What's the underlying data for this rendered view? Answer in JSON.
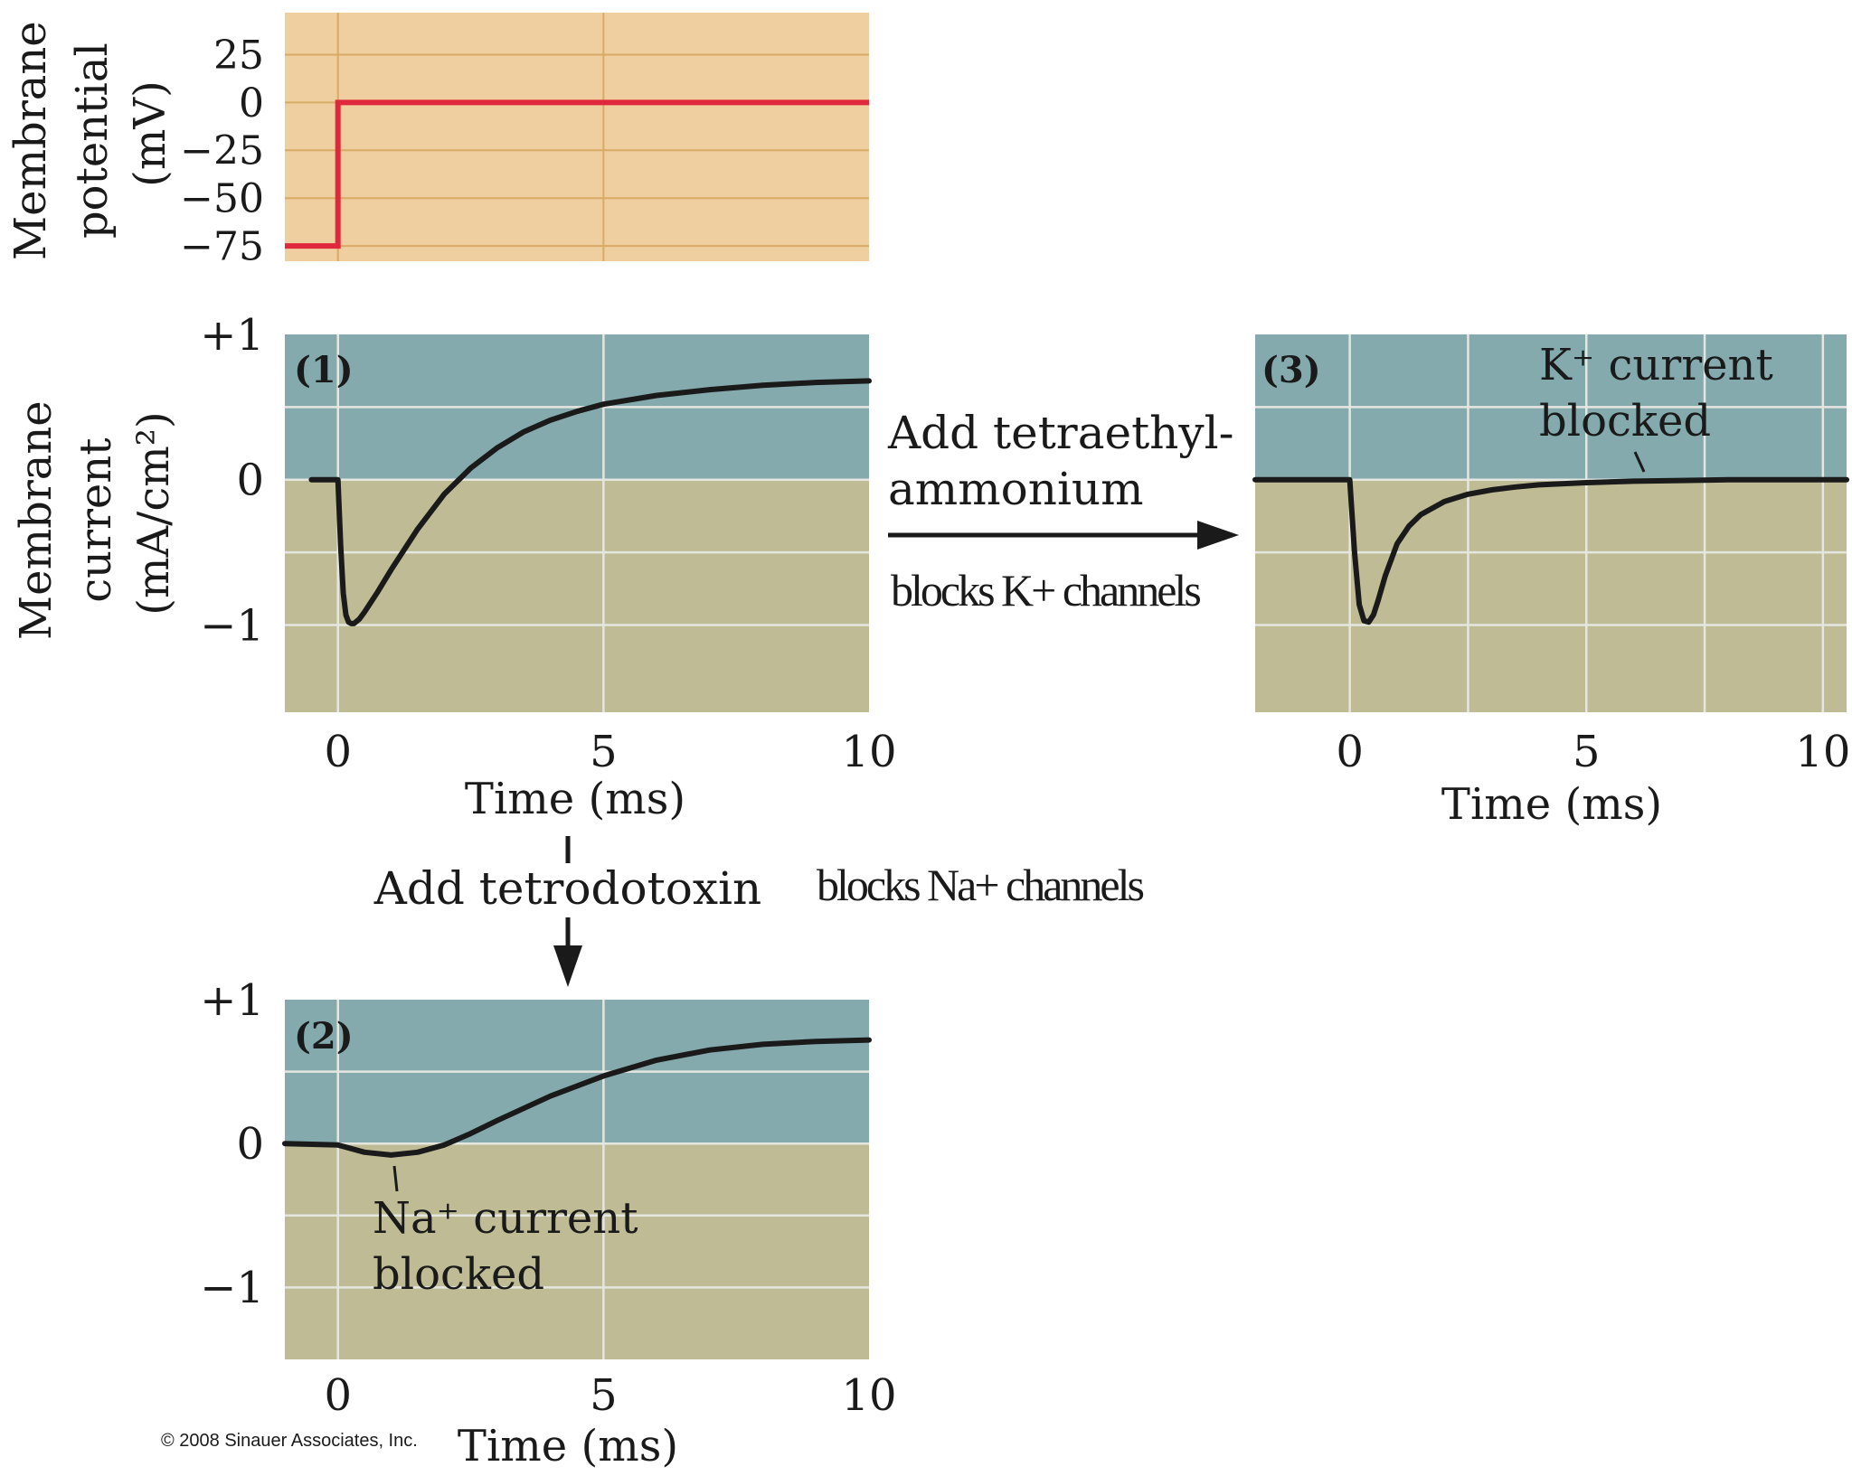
{
  "chart_data": [
    {
      "id": "voltage",
      "type": "line",
      "ylabel": [
        "Membrane",
        "potential",
        "(mV)"
      ],
      "yticks": [
        25,
        0,
        -25,
        -50,
        -75
      ],
      "ytick_labels": [
        "25",
        "0",
        "−25",
        "−50",
        "−75"
      ],
      "xlim": [
        -1,
        10
      ],
      "ylim": [
        -83,
        47
      ],
      "grid": true,
      "colors": {
        "background": "#efcfa0",
        "grid": "#d8aa64",
        "line": "#e0283c"
      },
      "series": [
        {
          "x": [
            -1,
            0,
            0,
            10
          ],
          "y": [
            -75,
            -75,
            0,
            0
          ]
        }
      ]
    },
    {
      "id": "panel-1",
      "type": "line",
      "panel_label": "(1)",
      "ylabel": [
        "Membrane",
        "current",
        "(mA/cm²)"
      ],
      "yticks": [
        1,
        0,
        -1
      ],
      "ytick_labels": [
        "+1",
        "0",
        "−1"
      ],
      "xticks": [
        0,
        5,
        10
      ],
      "xlabel": "Time (ms)",
      "xlim": [
        -1,
        10
      ],
      "ylim": [
        -1.6,
        1
      ],
      "grid": true,
      "colors": {
        "positive": "#84aaae",
        "negative": "#bfbc95",
        "grid": "#e6e6e1",
        "line": "#1a1a1a"
      },
      "series": [
        {
          "x": [
            -0.5,
            0,
            0.05,
            0.1,
            0.15,
            0.2,
            0.25,
            0.3,
            0.4,
            0.5,
            0.75,
            1,
            1.5,
            2,
            2.5,
            3,
            3.5,
            4,
            4.5,
            5,
            6,
            7,
            8,
            9,
            10
          ],
          "y": [
            0,
            0,
            -0.45,
            -0.78,
            -0.93,
            -0.98,
            -0.99,
            -0.99,
            -0.96,
            -0.91,
            -0.77,
            -0.62,
            -0.34,
            -0.1,
            0.08,
            0.22,
            0.33,
            0.41,
            0.47,
            0.52,
            0.58,
            0.62,
            0.65,
            0.67,
            0.68
          ]
        }
      ]
    },
    {
      "id": "panel-3",
      "type": "line",
      "panel_label": "(3)",
      "xticks": [
        0,
        5,
        10
      ],
      "xlabel": "Time (ms)",
      "xlim": [
        -2,
        10.5
      ],
      "ylim": [
        -1.6,
        1
      ],
      "grid": true,
      "colors": {
        "positive": "#84aaae",
        "negative": "#bfbc95",
        "grid": "#e6e6e1",
        "line": "#1a1a1a"
      },
      "series": [
        {
          "x": [
            -2,
            0,
            0.1,
            0.2,
            0.3,
            0.4,
            0.5,
            0.6,
            0.75,
            1,
            1.25,
            1.5,
            2,
            2.5,
            3,
            3.5,
            4,
            5,
            6,
            7,
            8,
            9,
            10,
            10.5
          ],
          "y": [
            0,
            0,
            -0.5,
            -0.86,
            -0.97,
            -0.98,
            -0.93,
            -0.83,
            -0.66,
            -0.44,
            -0.32,
            -0.24,
            -0.15,
            -0.1,
            -0.07,
            -0.05,
            -0.035,
            -0.02,
            -0.01,
            -0.005,
            0,
            0,
            0,
            0
          ]
        }
      ]
    },
    {
      "id": "panel-2",
      "type": "line",
      "panel_label": "(2)",
      "yticks": [
        1,
        0,
        -1
      ],
      "ytick_labels": [
        "+1",
        "0",
        "−1"
      ],
      "xticks": [
        0,
        5,
        10
      ],
      "xlabel": "Time (ms)",
      "xlim": [
        -1,
        10
      ],
      "ylim": [
        -1.5,
        1
      ],
      "grid": true,
      "colors": {
        "positive": "#84aaae",
        "negative": "#bfbc95",
        "grid": "#e6e6e1",
        "line": "#1a1a1a"
      },
      "series": [
        {
          "x": [
            -1,
            0,
            0.5,
            1,
            1.5,
            2,
            2.5,
            3,
            4,
            5,
            6,
            7,
            8,
            9,
            10
          ],
          "y": [
            0,
            -0.01,
            -0.06,
            -0.08,
            -0.06,
            -0.01,
            0.07,
            0.16,
            0.33,
            0.47,
            0.58,
            0.65,
            0.69,
            0.71,
            0.72
          ]
        }
      ]
    }
  ],
  "annotations": {
    "k_current_blocked": [
      "K⁺ current",
      "blocked"
    ],
    "na_current_blocked": [
      "Na⁺ current",
      "blocked"
    ],
    "add_tea": [
      "Add tetraethyl-",
      "ammonium"
    ],
    "blocks_k": "blocks K+ channels",
    "add_ttx": "Add tetrodotoxin",
    "blocks_na": "blocks Na+ channels",
    "copyright": "© 2008 Sinauer Associates, Inc."
  }
}
